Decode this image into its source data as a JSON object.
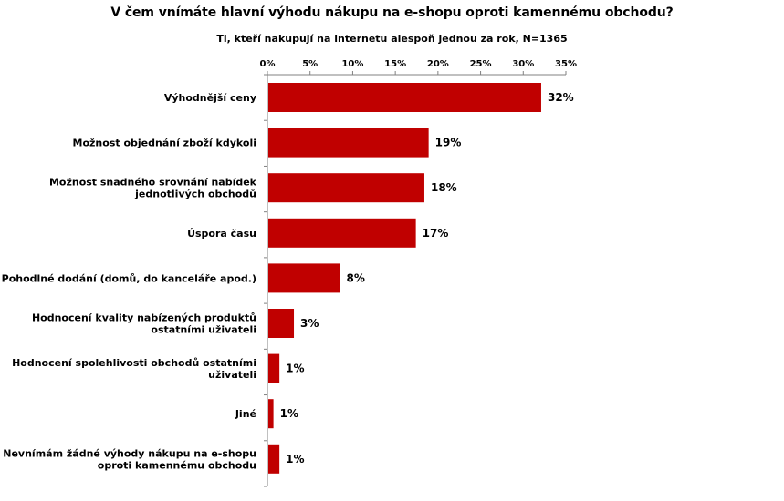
{
  "chart_data": {
    "type": "bar",
    "orientation": "horizontal",
    "title": "V čem vnímáte hlavní výhodu nákupu na e-shopu oproti kamennému obchodu?",
    "subtitle": "Ti, kteří nakupují na internetu alespoň jednou za rok, N=1365",
    "categories": [
      [
        "Výhodnější ceny"
      ],
      [
        "Možnost objednání zboží kdykoli"
      ],
      [
        "Možnost snadného srovnání nabídek",
        "jednotlivých obchodů"
      ],
      [
        "Úspora času"
      ],
      [
        "Pohodlné dodání (domů, do kanceláře apod.)"
      ],
      [
        "Hodnocení kvality nabízených produktů",
        "ostatními uživateli"
      ],
      [
        "Hodnocení spolehlivosti obchodů ostatními",
        "uživateli"
      ],
      [
        "Jiné"
      ],
      [
        "Nevnímám žádné výhody nákupu na e-shopu",
        "oproti kamennému obchodu"
      ]
    ],
    "values": [
      32,
      19,
      18,
      17,
      8,
      3,
      1,
      1,
      1
    ],
    "bar_lengths": [
      32,
      18.8,
      18.3,
      17.3,
      8.4,
      3.0,
      1.3,
      0.6,
      1.3
    ],
    "data_labels": [
      "32%",
      "19%",
      "18%",
      "17%",
      "8%",
      "3%",
      "1%",
      "1%",
      "1%"
    ],
    "x_ticks": [
      "0%",
      "5%",
      "10%",
      "15%",
      "20%",
      "25%",
      "30%",
      "35%"
    ],
    "xlim": [
      0,
      35
    ],
    "x_axis_position": "top",
    "grid": false,
    "legend": "none",
    "bar_color": "#C00000"
  }
}
